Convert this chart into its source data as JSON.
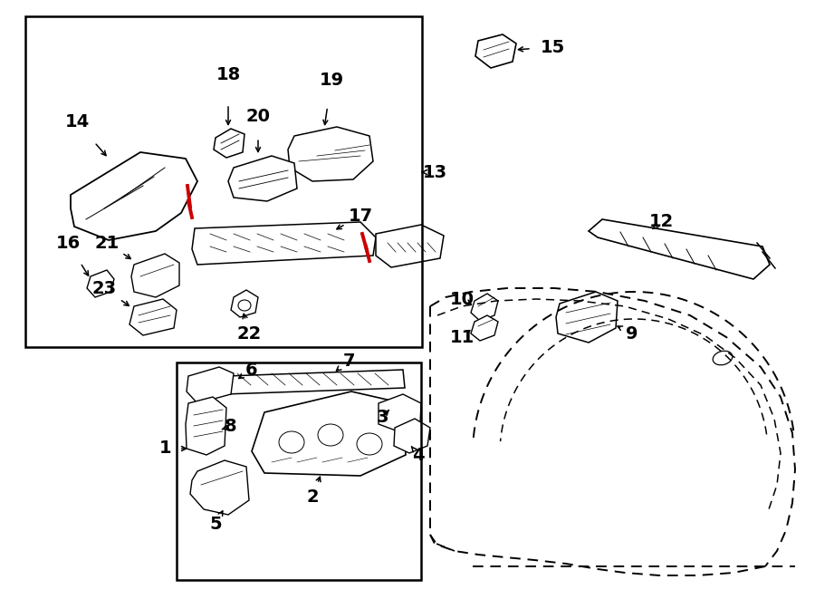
{
  "bg_color": "#ffffff",
  "line_color": "#000000",
  "red_color": "#cc0000",
  "font_size": 14,
  "arrow_color": "#000000"
}
